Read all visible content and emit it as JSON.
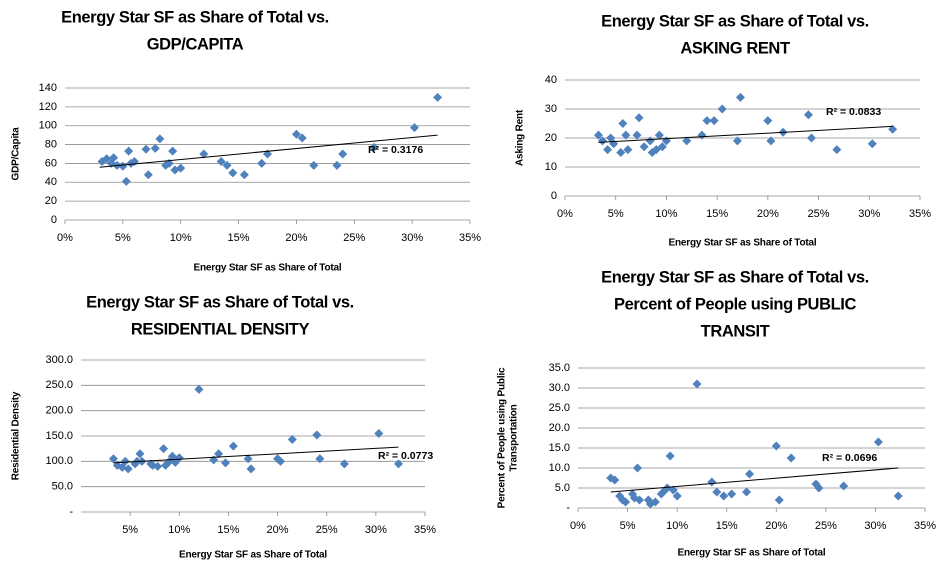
{
  "chart_data": [
    {
      "type": "scatter",
      "title": [
        "Energy Star SF as Share of Total vs.",
        "GDP/CAPITA"
      ],
      "xlabel": "Energy Star SF as Share of Total",
      "ylabel": [
        "GDP/Capita"
      ],
      "x": [
        3.2,
        3.6,
        4,
        4.2,
        4.5,
        5,
        5.3,
        5.5,
        5.7,
        6,
        7,
        7.2,
        7.8,
        8.2,
        8.7,
        9,
        9.3,
        9.5,
        10,
        12,
        13.5,
        14,
        14.5,
        15.5,
        17,
        17.5,
        20,
        20.5,
        21.5,
        23.5,
        24,
        26.7,
        30.2,
        32.2
      ],
      "values": [
        62,
        65,
        60,
        66,
        58,
        57,
        41,
        73,
        60,
        62,
        75,
        48,
        76,
        86,
        58,
        60,
        73,
        53,
        55,
        70,
        62,
        58,
        50,
        48,
        60,
        70,
        91,
        87,
        58,
        58,
        70,
        77,
        98,
        130
      ],
      "color": "#4f81bd",
      "trendline": {
        "x": [
          3,
          32.2
        ],
        "y": [
          56,
          90
        ]
      },
      "annotation": "R² = 0.3176",
      "xlim": [
        0,
        35
      ],
      "ylim": [
        0,
        140
      ],
      "xticks": [
        {
          "value": 0,
          "label": "0%"
        },
        {
          "value": 5,
          "label": "5%"
        },
        {
          "value": 10,
          "label": "10%"
        },
        {
          "value": 15,
          "label": "15%"
        },
        {
          "value": 20,
          "label": "20%"
        },
        {
          "value": 25,
          "label": "25%"
        },
        {
          "value": 30,
          "label": "30%"
        },
        {
          "value": 35,
          "label": "35%"
        }
      ],
      "yticks": [
        0,
        20,
        40,
        60,
        80,
        100,
        120,
        140
      ],
      "grid": true
    },
    {
      "type": "scatter",
      "title": [
        "Energy Star SF as Share of Total vs.",
        "ASKING RENT"
      ],
      "xlabel": "Energy Star SF as Share of Total",
      "ylabel": [
        "Asking Rent"
      ],
      "x": [
        3.3,
        3.7,
        4.2,
        4.5,
        4.8,
        5.5,
        5.7,
        6,
        6.2,
        7.1,
        7.3,
        7.8,
        8.4,
        8.6,
        9,
        9.3,
        9.6,
        10,
        12,
        13.5,
        14,
        14.7,
        15.5,
        17.3,
        17,
        20,
        20.3,
        21.5,
        24,
        24.3,
        26.8,
        30.3,
        32.3
      ],
      "values": [
        21,
        19,
        16,
        20,
        18,
        15,
        25,
        21,
        16,
        21,
        27,
        17,
        19,
        15,
        16,
        21,
        17,
        19,
        19,
        21,
        26,
        26,
        30,
        34,
        19,
        26,
        19,
        22,
        28,
        20,
        16,
        18,
        23
      ],
      "color": "#4f81bd",
      "trendline": {
        "x": [
          3.3,
          32.3
        ],
        "y": [
          18.5,
          24
        ]
      },
      "annotation": "R² = 0.0833",
      "xlim": [
        0,
        35
      ],
      "ylim": [
        0,
        40
      ],
      "xticks": [
        {
          "value": 0,
          "label": "0%"
        },
        {
          "value": 5,
          "label": "5%"
        },
        {
          "value": 10,
          "label": "10%"
        },
        {
          "value": 15,
          "label": "15%"
        },
        {
          "value": 20,
          "label": "20%"
        },
        {
          "value": 25,
          "label": "25%"
        },
        {
          "value": 30,
          "label": "30%"
        },
        {
          "value": 35,
          "label": "35%"
        }
      ],
      "yticks": [
        0,
        10,
        20,
        30,
        40
      ],
      "grid": true
    },
    {
      "type": "scatter",
      "title": [
        "Energy Star SF as Share of Total vs.",
        "RESIDENTIAL DENSITY"
      ],
      "xlabel": "Energy Star SF as Share of Total",
      "ylabel": [
        "Residential Density"
      ],
      "x": [
        3.3,
        3.7,
        4.2,
        4.5,
        4.8,
        5.5,
        5.7,
        6,
        6.2,
        7.1,
        7.3,
        7.8,
        8.4,
        8.6,
        9,
        9.3,
        9.6,
        10,
        12,
        13.5,
        14,
        14.7,
        15.5,
        17.3,
        17,
        20,
        20.3,
        21.5,
        24,
        24.3,
        26.8,
        30.3,
        32.3
      ],
      "values": [
        105,
        92,
        88,
        100,
        85,
        95,
        100,
        115,
        100,
        95,
        92,
        90,
        125,
        92,
        100,
        110,
        98,
        107,
        242,
        103,
        115,
        97,
        130,
        85,
        105,
        105,
        100,
        143,
        152,
        105,
        95,
        155,
        95
      ],
      "color": "#4f81bd",
      "trendline": {
        "x": [
          3.3,
          32.3
        ],
        "y": [
          97,
          128
        ]
      },
      "annotation": "R² = 0.0773",
      "xlim": [
        0,
        35
      ],
      "ylim": [
        0,
        300
      ],
      "xticks": [
        {
          "value": 5,
          "label": "5%"
        },
        {
          "value": 10,
          "label": "10%"
        },
        {
          "value": 15,
          "label": "15%"
        },
        {
          "value": 20,
          "label": "20%"
        },
        {
          "value": 25,
          "label": "25%"
        },
        {
          "value": 30,
          "label": "30%"
        },
        {
          "value": 35,
          "label": "35%"
        }
      ],
      "yticks": [
        {
          "value": 0,
          "label": "-"
        },
        {
          "value": 50,
          "label": "50.0"
        },
        {
          "value": 100,
          "label": "100.0"
        },
        {
          "value": 150,
          "label": "150.0"
        },
        {
          "value": 200,
          "label": "200.0"
        },
        {
          "value": 250,
          "label": "250.0"
        },
        {
          "value": 300,
          "label": "300.0"
        }
      ],
      "grid": true
    },
    {
      "type": "scatter",
      "title": [
        "Energy Star SF as Share of Total vs.",
        "Percent of People using PUBLIC",
        "TRANSIT"
      ],
      "xlabel": "Energy Star SF as Share of Total",
      "ylabel": [
        "Percent of People using Public",
        "Transportation"
      ],
      "x": [
        3.3,
        3.7,
        4.2,
        4.5,
        4.8,
        5.5,
        5.7,
        6,
        6.2,
        7.1,
        7.3,
        7.8,
        8.4,
        8.6,
        9,
        9.3,
        9.6,
        10,
        12,
        13.5,
        14,
        14.7,
        15.5,
        17.3,
        17,
        20,
        20.3,
        21.5,
        24,
        24.3,
        26.8,
        30.3,
        32.3
      ],
      "values": [
        7.5,
        7,
        3,
        2,
        1.5,
        3.5,
        2.5,
        10,
        2,
        2,
        1,
        1.5,
        3.5,
        4,
        5,
        13,
        4.5,
        3,
        31,
        6.5,
        4,
        3,
        3.5,
        8.5,
        4,
        15.5,
        2,
        12.5,
        6,
        5,
        5.5,
        16.5,
        3
      ],
      "color": "#4f81bd",
      "trendline": {
        "x": [
          3.3,
          32.3
        ],
        "y": [
          4,
          10
        ]
      },
      "annotation": "R² = 0.0696",
      "xlim": [
        0,
        35
      ],
      "ylim": [
        0,
        35
      ],
      "xticks": [
        {
          "value": 0,
          "label": "0%"
        },
        {
          "value": 5,
          "label": "5%"
        },
        {
          "value": 10,
          "label": "10%"
        },
        {
          "value": 15,
          "label": "15%"
        },
        {
          "value": 20,
          "label": "20%"
        },
        {
          "value": 25,
          "label": "25%"
        },
        {
          "value": 30,
          "label": "30%"
        },
        {
          "value": 35,
          "label": "35%"
        }
      ],
      "yticks": [
        {
          "value": 0,
          "label": "-"
        },
        {
          "value": 5,
          "label": "5.0"
        },
        {
          "value": 10,
          "label": "10.0"
        },
        {
          "value": 15,
          "label": "15.0"
        },
        {
          "value": 20,
          "label": "20.0"
        },
        {
          "value": 25,
          "label": "25.0"
        },
        {
          "value": 30,
          "label": "30.0"
        },
        {
          "value": 35,
          "label": "35.0"
        }
      ],
      "grid": true
    }
  ]
}
